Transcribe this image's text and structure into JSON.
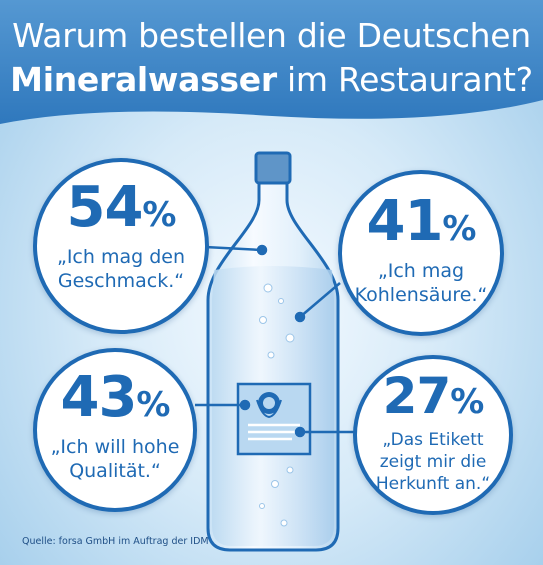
{
  "title": {
    "line1": "Warum bestellen die Deutschen",
    "line2_bold": "Mineralwasser",
    "line2_rest": " im Restaurant?"
  },
  "chart_data": {
    "type": "bubble-infographic",
    "unit": "%",
    "series": [
      {
        "value": 54,
        "label": "„Ich mag den Geschmack.“",
        "label_lines": [
          "„Ich mag den",
          "Geschmack.“"
        ]
      },
      {
        "value": 41,
        "label": "„Ich mag Kohlensäure.“",
        "label_lines": [
          "„Ich mag",
          "Kohlensäure.“"
        ]
      },
      {
        "value": 43,
        "label": "„Ich will hohe Qualität.“",
        "label_lines": [
          "„Ich will hohe",
          "Qualität.“"
        ]
      },
      {
        "value": 27,
        "label": "„Das Etikett zeigt mir die Herkunft an.“",
        "label_lines": [
          "„Das Etikett",
          "zeigt mir die",
          "Herkunft an.“"
        ]
      }
    ]
  },
  "source": "Quelle: forsa GmbH im Auftrag der IDM",
  "colors": {
    "primary": "#1f6ab4",
    "header": "#3f86c6",
    "background": "#d6eaf8",
    "bottle_cap": "#5f95c8",
    "label": "#b9d8f1"
  }
}
